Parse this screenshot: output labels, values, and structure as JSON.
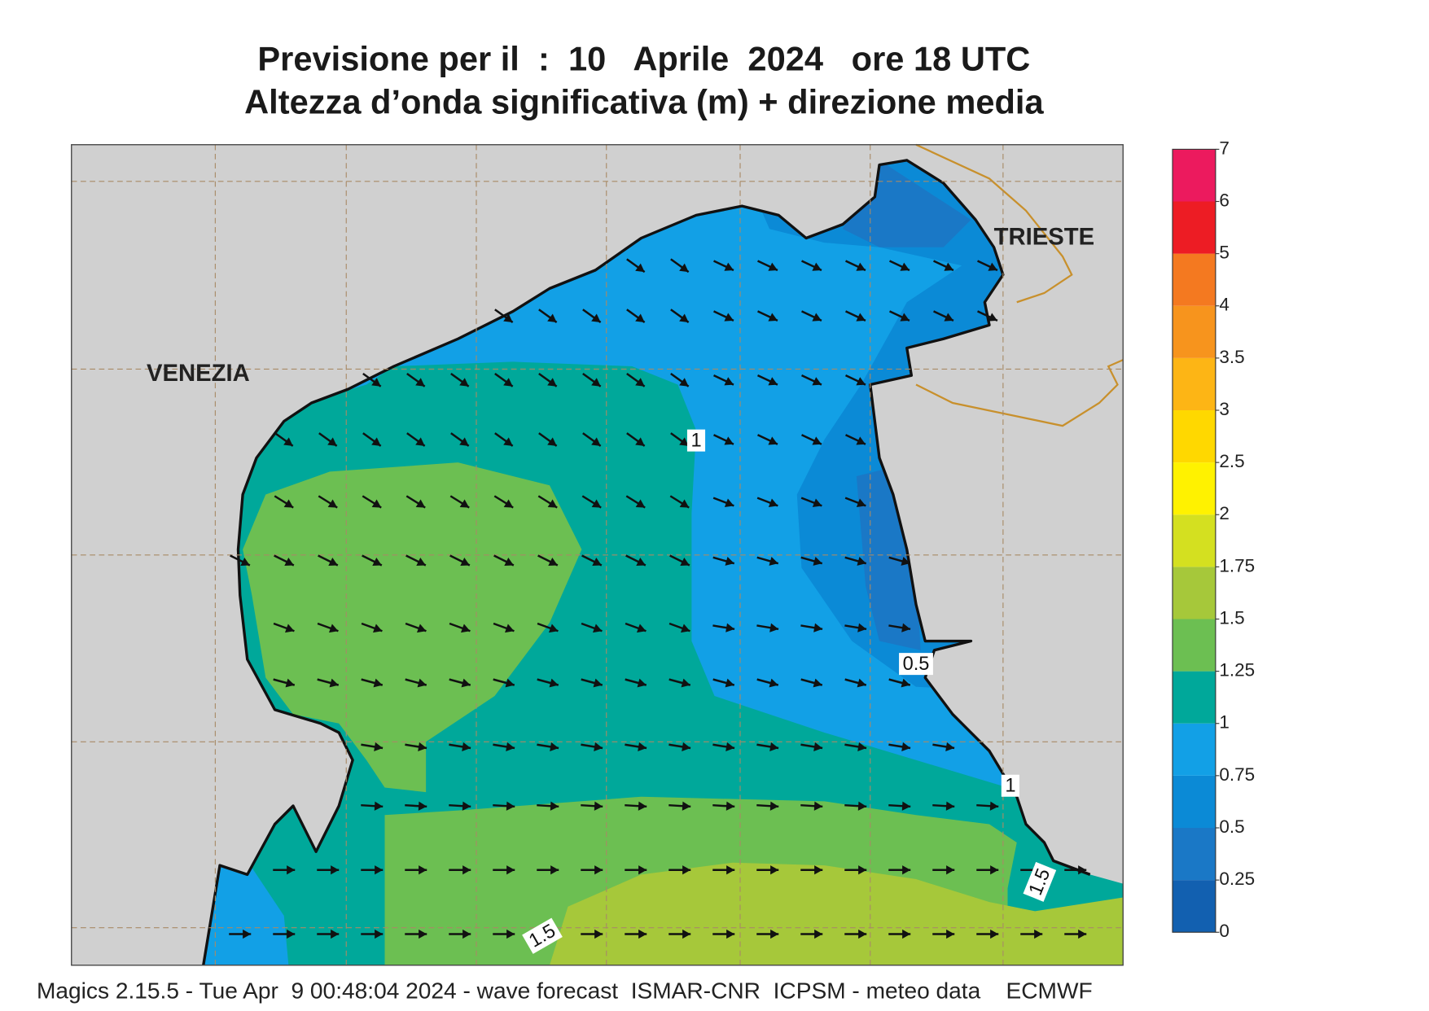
{
  "header": {
    "title": "Previsione per il  :  10   Aprile  2024   ore 18 UTC",
    "subtitle": "Altezza d’onda significativa (m) + direzione media"
  },
  "map": {
    "labels": [
      "VENEZIA",
      "TRIESTE"
    ],
    "contour_labels": [
      "1",
      "0.5",
      "1",
      "1.5",
      "1.5"
    ]
  },
  "colorbar": {
    "levels": [
      0,
      0.25,
      0.5,
      0.75,
      1,
      1.25,
      1.5,
      1.75,
      2,
      2.5,
      3,
      3.5,
      4,
      5,
      6,
      7
    ],
    "colors": [
      "#1260b0",
      "#1a78c6",
      "#0b8ad6",
      "#12a0e6",
      "#00a89a",
      "#6cbf52",
      "#a6c83a",
      "#d4e020",
      "#fff200",
      "#ffd800",
      "#fdb515",
      "#f7941d",
      "#f47920",
      "#ed1c24",
      "#ec1a5e"
    ]
  },
  "footer": "Magics 2.15.5 - Tue Apr  9 00:48:04 2024 - wave forecast  ISMAR-CNR  ICPSM - meteo data    ECMWF"
}
